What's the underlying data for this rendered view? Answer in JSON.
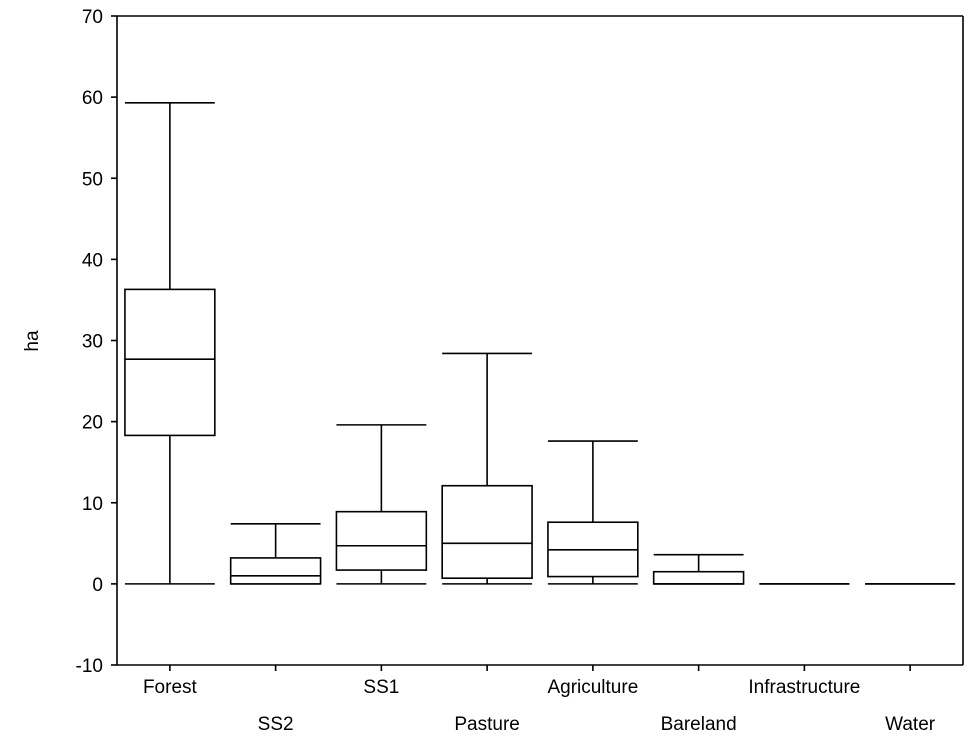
{
  "chart_data": {
    "type": "box",
    "ylabel": "ha",
    "ylim": [
      -10,
      70
    ],
    "yticks": [
      -10,
      0,
      10,
      20,
      30,
      40,
      50,
      60,
      70
    ],
    "grid": false,
    "categories": [
      "Forest",
      "SS2",
      "SS1",
      "Pasture",
      "Agriculture",
      "Bareland",
      "Infrastructure",
      "Water"
    ],
    "boxes": [
      {
        "category": "Forest",
        "min": 0,
        "q1": 18.3,
        "median": 27.7,
        "q3": 36.3,
        "max": 59.3
      },
      {
        "category": "SS2",
        "min": 0,
        "q1": 0,
        "median": 1.0,
        "q3": 3.2,
        "max": 7.4
      },
      {
        "category": "SS1",
        "min": 0,
        "q1": 1.7,
        "median": 4.7,
        "q3": 8.9,
        "max": 19.6
      },
      {
        "category": "Pasture",
        "min": 0,
        "q1": 0.7,
        "median": 5.0,
        "q3": 12.1,
        "max": 28.4
      },
      {
        "category": "Agriculture",
        "min": 0,
        "q1": 0.9,
        "median": 4.2,
        "q3": 7.6,
        "max": 17.6
      },
      {
        "category": "Bareland",
        "min": 0,
        "q1": 0,
        "median": 0,
        "q3": 1.5,
        "max": 3.6
      },
      {
        "category": "Infrastructure",
        "min": 0,
        "q1": 0,
        "median": 0,
        "q3": 0,
        "max": 0
      },
      {
        "category": "Water",
        "min": 0,
        "q1": 0,
        "median": 0,
        "q3": 0,
        "max": 0
      }
    ]
  }
}
